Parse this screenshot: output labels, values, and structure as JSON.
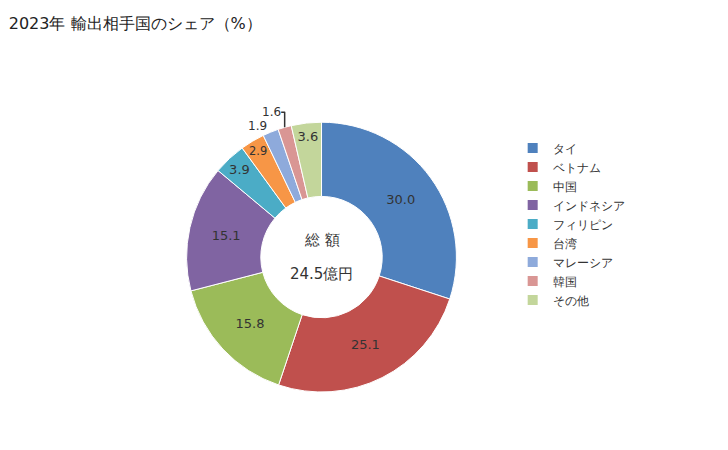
{
  "chart_data": {
    "type": "pie",
    "title": "2023年 輸出相手国のシェア（%）",
    "categories": [
      "タイ",
      "ベトナム",
      "中国",
      "インドネシア",
      "フィリピン",
      "台湾",
      "マレーシア",
      "韓国",
      "その他"
    ],
    "values": [
      30.0,
      25.1,
      15.8,
      15.1,
      3.9,
      2.9,
      1.9,
      1.6,
      3.6
    ],
    "value_labels": [
      "30.0",
      "25.1",
      "15.8",
      "15.1",
      "3.9",
      "2.9",
      "1.9",
      "1.6",
      "3.6"
    ],
    "colors": [
      "#4f81bd",
      "#c0504d",
      "#9bbb59",
      "#8064a2",
      "#4bacc6",
      "#f79646",
      "#8eaadb",
      "#d99694",
      "#c3d69b"
    ],
    "annotations": [
      "総 額",
      "24.5億円"
    ],
    "data_labels": true,
    "legend": "right"
  }
}
